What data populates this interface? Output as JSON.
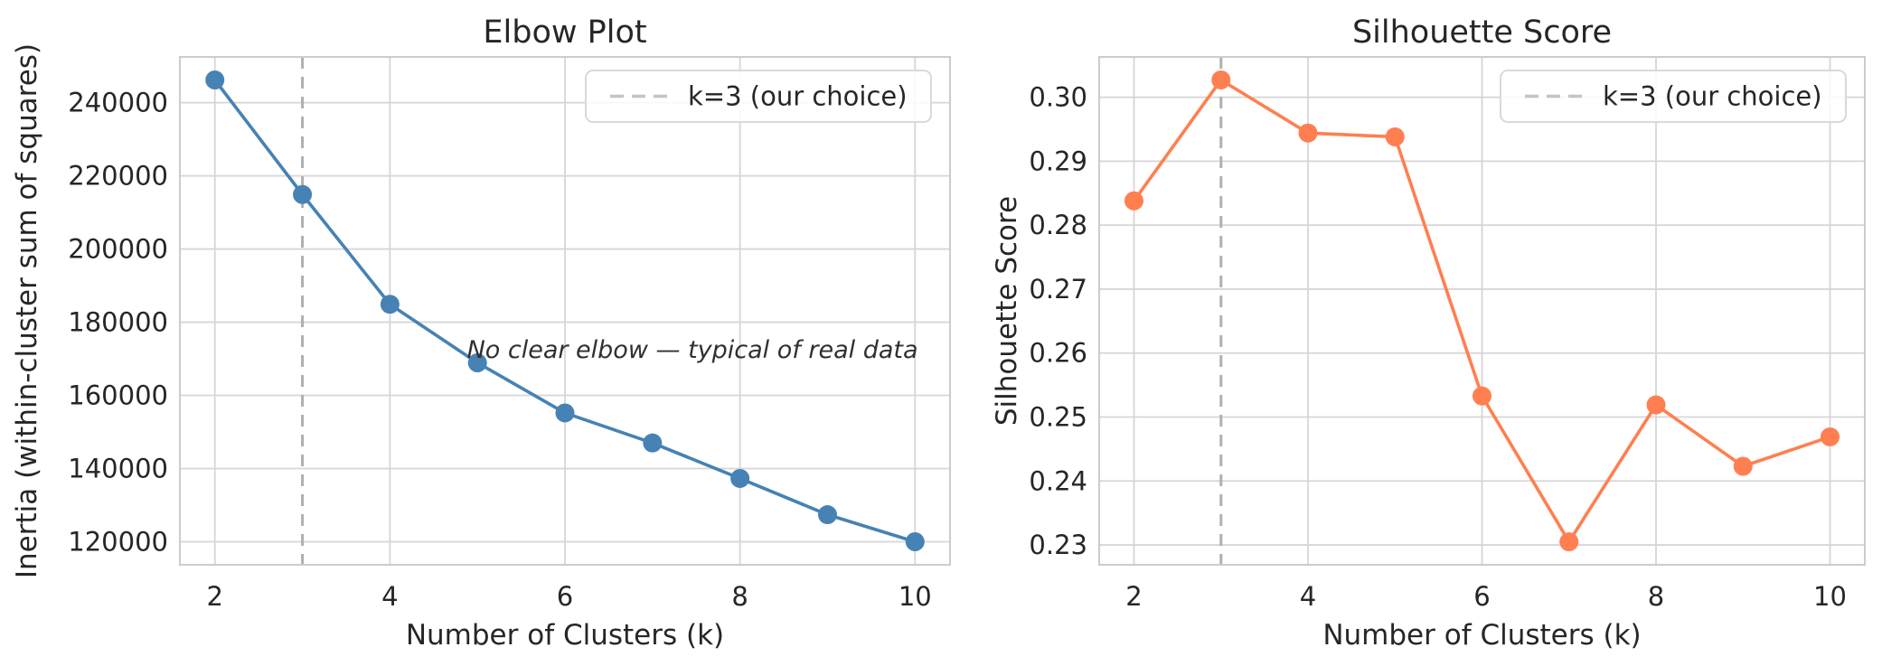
{
  "figure": {
    "background": "#ffffff",
    "grid_color": "#d6d6d6",
    "spine_color": "#cccccc",
    "text_color": "#262626",
    "vline_color": "#b0b0b0",
    "legend_border_color": "#d9d9d9",
    "legend_dash_color": "#c4c4c4"
  },
  "chart_data": [
    {
      "type": "line",
      "title": "Elbow Plot",
      "xlabel": "Number of Clusters (k)",
      "ylabel": "Inertia (within-cluster sum of squares)",
      "x": [
        2,
        3,
        4,
        5,
        6,
        7,
        8,
        9,
        10
      ],
      "series": [
        {
          "name": "Inertia",
          "color": "#4682B4",
          "values": [
            246200,
            214900,
            184900,
            168900,
            155200,
            147000,
            137300,
            127400,
            120000
          ]
        }
      ],
      "xlim": [
        1.6,
        10.4
      ],
      "ylim": [
        113700,
        252500
      ],
      "xticks": [
        2,
        4,
        6,
        8,
        10
      ],
      "xtick_labels": [
        "2",
        "4",
        "6",
        "8",
        "10"
      ],
      "yticks": [
        120000,
        140000,
        160000,
        180000,
        200000,
        220000,
        240000
      ],
      "ytick_labels": [
        "120000",
        "140000",
        "160000",
        "180000",
        "200000",
        "220000",
        "240000"
      ],
      "grid": true,
      "vline": {
        "x": 3,
        "style": "dashed"
      },
      "legend": {
        "position": "upper right",
        "entries": [
          {
            "label": "k=3 (our choice)",
            "style": "dashed"
          }
        ]
      },
      "annotation": {
        "text": "No clear elbow — typical of real data",
        "x": 4.88,
        "y": 170300,
        "style": "italic"
      }
    },
    {
      "type": "line",
      "title": "Silhouette Score",
      "xlabel": "Number of Clusters (k)",
      "ylabel": "Silhouette Score",
      "x": [
        2,
        3,
        4,
        5,
        6,
        7,
        8,
        9,
        10
      ],
      "series": [
        {
          "name": "Silhouette Score",
          "color": "#FF7F50",
          "values": [
            0.2838,
            0.3027,
            0.2944,
            0.2938,
            0.2533,
            0.2305,
            0.2519,
            0.2423,
            0.2469
          ]
        }
      ],
      "xlim": [
        1.6,
        10.4
      ],
      "ylim": [
        0.2269,
        0.3063
      ],
      "xticks": [
        2,
        4,
        6,
        8,
        10
      ],
      "xtick_labels": [
        "2",
        "4",
        "6",
        "8",
        "10"
      ],
      "yticks": [
        0.23,
        0.24,
        0.25,
        0.26,
        0.27,
        0.28,
        0.29,
        0.3
      ],
      "ytick_labels": [
        "0.23",
        "0.24",
        "0.25",
        "0.26",
        "0.27",
        "0.28",
        "0.29",
        "0.30"
      ],
      "grid": true,
      "vline": {
        "x": 3,
        "style": "dashed"
      },
      "legend": {
        "position": "upper right",
        "entries": [
          {
            "label": "k=3 (our choice)",
            "style": "dashed"
          }
        ]
      }
    }
  ]
}
